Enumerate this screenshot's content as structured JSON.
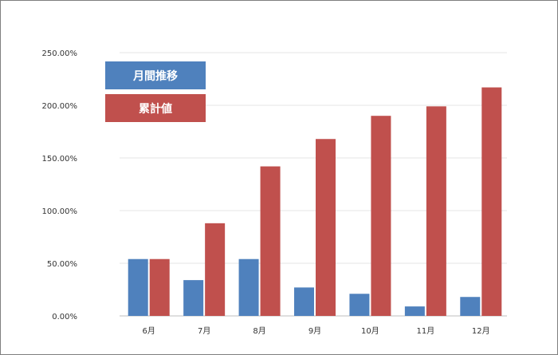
{
  "chart_data": {
    "type": "bar",
    "categories": [
      "6月",
      "7月",
      "8月",
      "9月",
      "10月",
      "11月",
      "12月"
    ],
    "series": [
      {
        "name": "月間推移",
        "color": "#4f81bd",
        "values": [
          54,
          34,
          54,
          27,
          21,
          9,
          18
        ]
      },
      {
        "name": "累計値",
        "color": "#c0504d",
        "values": [
          54,
          88,
          142,
          168,
          190,
          199,
          217
        ]
      }
    ],
    "ylim": [
      0,
      250
    ],
    "yticks": [
      "0.00%",
      "50.00%",
      "100.00%",
      "150.00%",
      "200.00%",
      "250.00%"
    ],
    "title": "",
    "xlabel": "",
    "ylabel": "",
    "grid": true,
    "legend_position": "top-left"
  }
}
